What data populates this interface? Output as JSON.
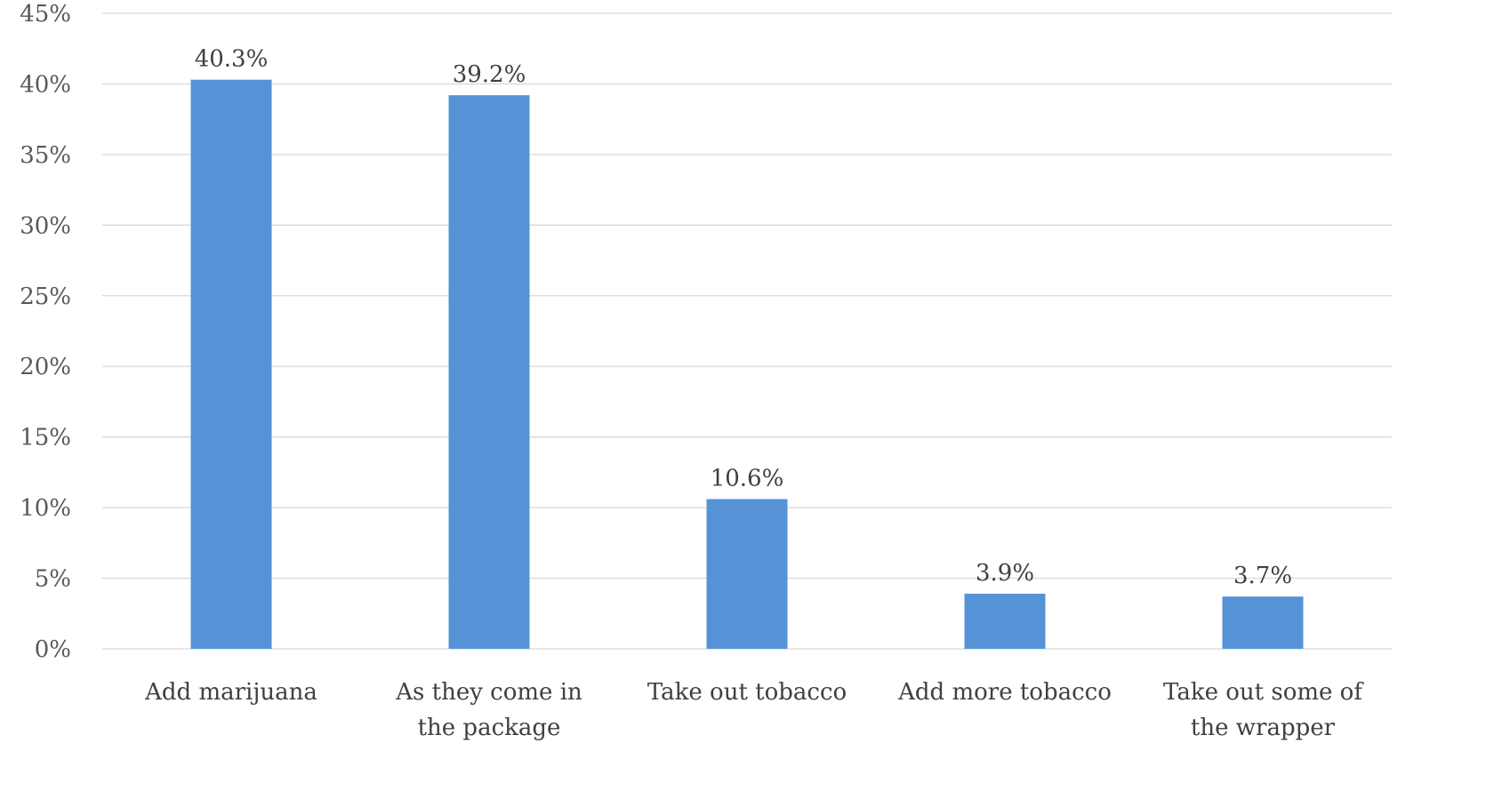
{
  "chart_data": {
    "type": "bar",
    "title": "",
    "xlabel": "",
    "ylabel": "",
    "categories": [
      "Add marijuana",
      "As they come in the package",
      "Take out tobacco",
      "Add more tobacco",
      "Take out some of the wrapper"
    ],
    "category_lines": [
      [
        "Add marijuana"
      ],
      [
        "As they come in",
        "the package"
      ],
      [
        "Take out tobacco"
      ],
      [
        "Add more tobacco"
      ],
      [
        "Take out some of",
        "the wrapper"
      ]
    ],
    "values": [
      40.3,
      39.2,
      10.6,
      3.9,
      3.7
    ],
    "data_labels": [
      "40.3%",
      "39.2%",
      "10.6%",
      "3.9%",
      "3.7%"
    ],
    "ylim": [
      0,
      45
    ],
    "y_ticks": [
      0,
      5,
      10,
      15,
      20,
      25,
      30,
      35,
      40,
      45
    ],
    "y_tick_labels": [
      "0%",
      "5%",
      "10%",
      "15%",
      "20%",
      "25%",
      "30%",
      "35%",
      "40%",
      "45%"
    ],
    "grid": true,
    "legend": "none",
    "colors": {
      "bar": "#5593d6",
      "grid": "#d9d9d9"
    }
  }
}
